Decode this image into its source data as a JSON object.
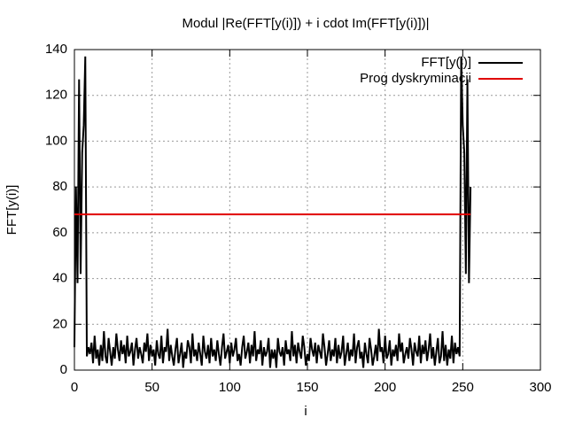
{
  "chart_data": {
    "type": "line",
    "title": "Modul |Re(FFT[y(i)]) + i cdot Im(FFT[y(i)])|",
    "x_label": "i",
    "y_label": "FFT[y(i)]",
    "xlim": [
      0,
      300
    ],
    "xticks": [
      0,
      50,
      100,
      150,
      200,
      250,
      300
    ],
    "ylim": [
      0,
      140
    ],
    "yticks": [
      0,
      20,
      40,
      60,
      80,
      100,
      120,
      140
    ],
    "grid": true,
    "legend": "top-right",
    "series": [
      {
        "name": "FFT[y(i)]",
        "color": "#000000",
        "values": [
          10,
          80,
          38,
          127,
          42,
          95,
          107,
          137,
          6,
          10,
          7,
          12,
          3,
          15,
          5,
          9,
          2,
          11,
          4,
          17,
          6,
          3,
          14,
          8,
          2,
          10,
          5,
          16,
          9,
          4,
          13,
          7,
          11,
          3,
          15,
          6,
          8,
          12,
          2,
          9,
          14,
          5,
          10,
          7,
          3,
          12,
          8,
          16,
          4,
          11,
          6,
          9,
          2,
          13,
          7,
          5,
          15,
          3,
          10,
          8,
          18,
          4,
          11,
          6,
          2,
          9,
          14,
          3,
          7,
          12,
          1,
          8,
          5,
          13,
          10,
          3,
          16,
          6,
          9,
          4,
          12,
          7,
          2,
          15,
          8,
          5,
          11,
          3,
          14,
          6,
          9,
          4,
          13,
          7,
          2,
          10,
          16,
          5,
          8,
          11,
          3,
          12,
          6,
          9,
          14,
          4,
          7,
          2,
          10,
          15,
          5,
          8,
          12,
          3,
          11,
          6,
          17,
          4,
          9,
          7,
          13,
          2,
          10,
          6,
          8,
          14,
          1,
          9,
          5,
          9,
          1,
          14,
          8,
          6,
          10,
          2,
          13,
          7,
          9,
          4,
          17,
          6,
          11,
          3,
          12,
          8,
          5,
          15,
          10,
          2,
          7,
          4,
          14,
          9,
          6,
          12,
          3,
          11,
          8,
          5,
          16,
          10,
          2,
          7,
          13,
          4,
          9,
          6,
          14,
          3,
          11,
          5,
          8,
          15,
          2,
          7,
          12,
          4,
          9,
          6,
          16,
          3,
          10,
          13,
          5,
          8,
          1,
          12,
          7,
          3,
          14,
          9,
          2,
          6,
          11,
          4,
          18,
          8,
          10,
          3,
          15,
          5,
          7,
          13,
          2,
          9,
          6,
          11,
          4,
          16,
          8,
          12,
          3,
          7,
          10,
          5,
          14,
          9,
          2,
          12,
          8,
          6,
          15,
          3,
          11,
          7,
          13,
          4,
          9,
          16,
          5,
          10,
          2,
          8,
          14,
          3,
          6,
          17,
          4,
          11,
          2,
          9,
          5,
          15,
          3,
          12,
          7,
          10,
          6,
          137,
          107,
          95,
          42,
          127,
          38,
          80
        ]
      },
      {
        "name": "Prog dyskryminacji",
        "color": "#e00000",
        "x": [
          0,
          255
        ],
        "values": [
          68,
          68
        ]
      }
    ]
  }
}
